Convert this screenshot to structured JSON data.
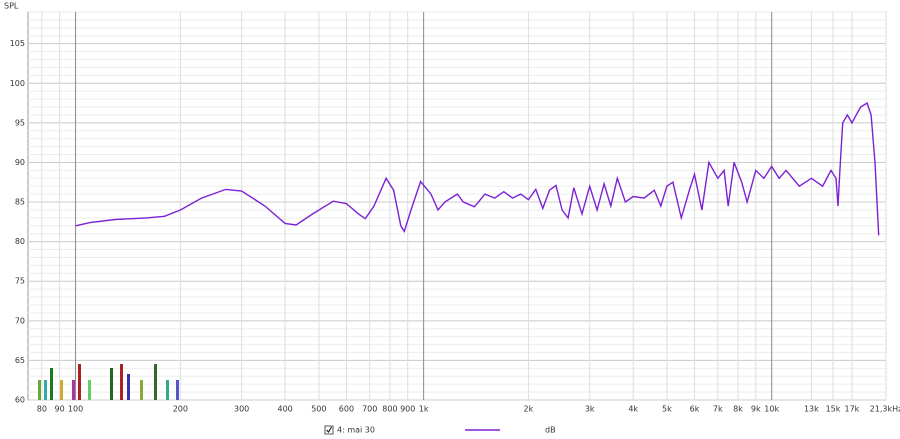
{
  "chart_data": {
    "type": "line",
    "y_label": "SPL",
    "log_x": true,
    "grid": true,
    "x": [
      100,
      110,
      130,
      160,
      180,
      200,
      230,
      270,
      300,
      350,
      400,
      430,
      480,
      550,
      600,
      650,
      680,
      720,
      780,
      820,
      860,
      880,
      920,
      980,
      1050,
      1100,
      1150,
      1250,
      1300,
      1400,
      1500,
      1600,
      1700,
      1800,
      1900,
      2000,
      2100,
      2200,
      2300,
      2400,
      2500,
      2600,
      2700,
      2850,
      3000,
      3150,
      3300,
      3450,
      3600,
      3800,
      4000,
      4300,
      4600,
      4800,
      5000,
      5200,
      5500,
      5800,
      6000,
      6300,
      6600,
      7000,
      7300,
      7500,
      7800,
      8200,
      8500,
      9000,
      9500,
      10000,
      10500,
      11000,
      12000,
      13000,
      14000,
      14800,
      15300,
      15500,
      15700,
      16000,
      16500,
      17000,
      18000,
      18800,
      19300,
      19800,
      20300
    ],
    "series": [
      {
        "name": "4: mai 30",
        "color": "#7b22d4",
        "values": [
          82,
          82.4,
          82.8,
          83,
          83.2,
          84,
          85.5,
          86.6,
          86.4,
          84.5,
          82.3,
          82.1,
          83.5,
          85.1,
          84.8,
          83.5,
          82.9,
          84.5,
          88,
          86.5,
          82,
          81.3,
          84,
          87.6,
          86,
          84,
          85,
          86,
          85,
          84.4,
          86,
          85.5,
          86.3,
          85.5,
          86,
          85.3,
          86.6,
          84.2,
          86.5,
          87.1,
          84,
          83,
          86.8,
          83.5,
          87,
          84,
          87.3,
          84.5,
          88,
          85,
          85.7,
          85.5,
          86.5,
          84.5,
          87,
          87.5,
          83,
          86.5,
          88.5,
          84,
          90,
          88,
          89,
          84.5,
          90,
          87.5,
          85,
          89,
          88,
          89.5,
          88,
          89,
          87,
          88,
          87,
          89,
          88,
          84.5,
          89,
          95,
          96,
          95,
          97,
          97.5,
          96,
          90,
          80.8
        ]
      }
    ],
    "y_unit": "dB",
    "xlim": [
      73,
      21300
    ],
    "ylim": [
      60,
      109
    ],
    "yticks": [
      60,
      65,
      70,
      75,
      80,
      85,
      90,
      95,
      100,
      105
    ],
    "xticks": [
      80,
      90,
      100,
      200,
      300,
      400,
      500,
      600,
      700,
      800,
      900,
      {
        "value": 1000,
        "label": "1k"
      },
      {
        "value": 2000,
        "label": "2k"
      },
      {
        "value": 3000,
        "label": "3k"
      },
      {
        "value": 4000,
        "label": "4k"
      },
      {
        "value": 5000,
        "label": "5k"
      },
      {
        "value": 6000,
        "label": "6k"
      },
      {
        "value": 7000,
        "label": "7k"
      },
      {
        "value": 8000,
        "label": "8k"
      },
      {
        "value": 9000,
        "label": "9k"
      },
      {
        "value": 10000,
        "label": "10k"
      },
      {
        "value": 13000,
        "label": "13k"
      },
      {
        "value": 15000,
        "label": "15k"
      },
      {
        "value": 17000,
        "label": "17k"
      },
      {
        "value": 21300,
        "label": "21,3kHz"
      }
    ]
  }
}
